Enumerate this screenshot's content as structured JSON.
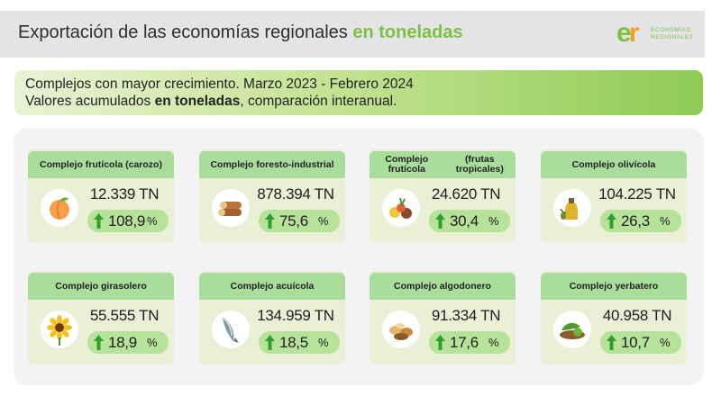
{
  "header": {
    "title": "Exportación de las economías regionales",
    "title_highlight": "en toneladas"
  },
  "logo": {
    "mark_e": "e",
    "mark_n": "r",
    "line1": "ECONOMÍAS",
    "line2": "REGIONALES"
  },
  "banner": {
    "line1": "Complejos con mayor crecimiento. Marzo 2023 - Febrero 2024",
    "line2_pre": "Valores acumulados ",
    "line2_bold": "en toneladas",
    "line2_post": ", comparación interanual."
  },
  "unit": "%",
  "cards": [
    {
      "label": "Complejo frutícola (carozo)",
      "label2": "",
      "value": "12.339 TN",
      "growth": "108,9",
      "icon": "peach-icon"
    },
    {
      "label": "Complejo foresto-industrial",
      "label2": "",
      "value": "878.394 TN",
      "growth": "75,6",
      "icon": "logs-icon"
    },
    {
      "label": "Complejo frutícola",
      "label2": "(frutas tropicales)",
      "value": "24.620 TN",
      "growth": "30,4",
      "icon": "tropical-fruits-icon"
    },
    {
      "label": "Complejo olivícola",
      "label2": "",
      "value": "104.225 TN",
      "growth": "26,3",
      "icon": "olive-oil-icon"
    },
    {
      "label": "Complejo girasolero",
      "label2": "",
      "value": "55.555 TN",
      "growth": "18,9",
      "icon": "sunflower-icon"
    },
    {
      "label": "Complejo acuícola",
      "label2": "",
      "value": "134.959 TN",
      "growth": "18,5",
      "icon": "fish-icon"
    },
    {
      "label": "Complejo algodonero",
      "label2": "",
      "value": "91.334 TN",
      "growth": "17,6",
      "icon": "cotton-seeds-icon"
    },
    {
      "label": "Complejo yerbatero",
      "label2": "",
      "value": "40.958 TN",
      "growth": "10,7",
      "icon": "yerba-mate-icon"
    }
  ]
}
